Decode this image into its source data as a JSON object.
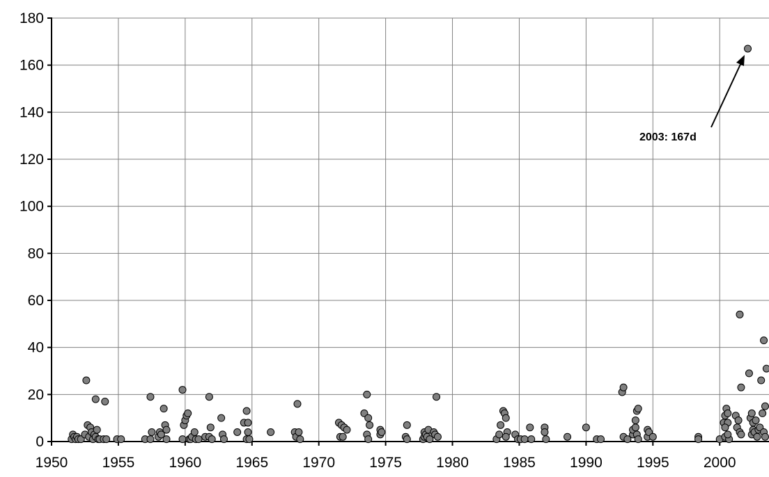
{
  "chart_data": {
    "type": "scatter",
    "title": "",
    "xlabel": "",
    "ylabel": "",
    "xlim": [
      1950,
      2003.5
    ],
    "ylim": [
      0,
      180
    ],
    "x_ticks": [
      1950,
      1955,
      1960,
      1965,
      1970,
      1975,
      1980,
      1985,
      1990,
      1995,
      2000
    ],
    "y_ticks": [
      0,
      20,
      40,
      60,
      80,
      100,
      120,
      140,
      160,
      180
    ],
    "grid": true,
    "legend": "none",
    "marker_color": "#808080",
    "marker_edge_color": "#000000",
    "annotation": {
      "text": "2003: 167d",
      "x": 2002.1,
      "y": 167
    },
    "points": [
      [
        1951.5,
        1
      ],
      [
        1951.6,
        3
      ],
      [
        1951.7,
        2
      ],
      [
        1951.8,
        1
      ],
      [
        1951.9,
        2
      ],
      [
        1952.0,
        1
      ],
      [
        1952.2,
        1
      ],
      [
        1952.5,
        3
      ],
      [
        1952.6,
        26
      ],
      [
        1952.7,
        7
      ],
      [
        1952.8,
        2
      ],
      [
        1952.9,
        6
      ],
      [
        1953.0,
        4
      ],
      [
        1953.1,
        1
      ],
      [
        1953.2,
        3
      ],
      [
        1953.3,
        2
      ],
      [
        1953.4,
        5
      ],
      [
        1953.3,
        18
      ],
      [
        1953.5,
        1
      ],
      [
        1953.6,
        1
      ],
      [
        1953.9,
        1
      ],
      [
        1954.0,
        17
      ],
      [
        1954.1,
        1
      ],
      [
        1954.9,
        1
      ],
      [
        1955.2,
        1
      ],
      [
        1957.0,
        1
      ],
      [
        1957.4,
        1
      ],
      [
        1957.4,
        19
      ],
      [
        1957.5,
        4
      ],
      [
        1958.0,
        2
      ],
      [
        1958.1,
        4
      ],
      [
        1958.2,
        3
      ],
      [
        1958.4,
        14
      ],
      [
        1958.5,
        7
      ],
      [
        1958.6,
        1
      ],
      [
        1958.6,
        5
      ],
      [
        1959.8,
        22
      ],
      [
        1959.8,
        1
      ],
      [
        1959.9,
        7
      ],
      [
        1960.0,
        9
      ],
      [
        1960.1,
        11
      ],
      [
        1960.2,
        12
      ],
      [
        1960.3,
        1
      ],
      [
        1960.4,
        1
      ],
      [
        1960.5,
        2
      ],
      [
        1960.7,
        4
      ],
      [
        1960.8,
        1
      ],
      [
        1961.0,
        1
      ],
      [
        1961.5,
        2
      ],
      [
        1961.8,
        2
      ],
      [
        1961.8,
        19
      ],
      [
        1961.9,
        6
      ],
      [
        1962.0,
        1
      ],
      [
        1962.7,
        10
      ],
      [
        1962.8,
        3
      ],
      [
        1962.9,
        1
      ],
      [
        1963.9,
        4
      ],
      [
        1964.4,
        8
      ],
      [
        1964.6,
        13
      ],
      [
        1964.7,
        8
      ],
      [
        1964.6,
        1
      ],
      [
        1964.7,
        4
      ],
      [
        1964.8,
        1
      ],
      [
        1966.4,
        4
      ],
      [
        1968.2,
        4
      ],
      [
        1968.3,
        2
      ],
      [
        1968.4,
        16
      ],
      [
        1968.5,
        4
      ],
      [
        1968.6,
        1
      ],
      [
        1971.5,
        8
      ],
      [
        1971.6,
        2
      ],
      [
        1971.7,
        7
      ],
      [
        1971.8,
        2
      ],
      [
        1971.9,
        6
      ],
      [
        1972.1,
        5
      ],
      [
        1973.4,
        12
      ],
      [
        1973.6,
        20
      ],
      [
        1973.7,
        10
      ],
      [
        1973.8,
        7
      ],
      [
        1973.6,
        3
      ],
      [
        1973.7,
        1
      ],
      [
        1974.6,
        5
      ],
      [
        1974.6,
        3
      ],
      [
        1974.7,
        4
      ],
      [
        1976.6,
        7
      ],
      [
        1976.5,
        2
      ],
      [
        1976.6,
        1
      ],
      [
        1977.8,
        1
      ],
      [
        1977.9,
        2
      ],
      [
        1977.9,
        4
      ],
      [
        1978.0,
        3
      ],
      [
        1978.1,
        2
      ],
      [
        1978.2,
        5
      ],
      [
        1978.3,
        1
      ],
      [
        1978.6,
        4
      ],
      [
        1978.7,
        3
      ],
      [
        1978.8,
        19
      ],
      [
        1978.9,
        2
      ],
      [
        1983.3,
        1
      ],
      [
        1983.5,
        3
      ],
      [
        1983.6,
        7
      ],
      [
        1983.8,
        13
      ],
      [
        1983.9,
        12
      ],
      [
        1984.0,
        10
      ],
      [
        1984.1,
        4
      ],
      [
        1984.0,
        2
      ],
      [
        1984.7,
        3
      ],
      [
        1984.9,
        1
      ],
      [
        1985.1,
        1
      ],
      [
        1985.4,
        1
      ],
      [
        1985.8,
        6
      ],
      [
        1985.9,
        1
      ],
      [
        1986.9,
        6
      ],
      [
        1986.9,
        4
      ],
      [
        1987.0,
        1
      ],
      [
        1988.6,
        2
      ],
      [
        1990.0,
        6
      ],
      [
        1990.8,
        1
      ],
      [
        1991.1,
        1
      ],
      [
        1992.7,
        21
      ],
      [
        1992.8,
        23
      ],
      [
        1992.8,
        2
      ],
      [
        1993.1,
        1
      ],
      [
        1993.5,
        3
      ],
      [
        1993.5,
        5
      ],
      [
        1993.7,
        9
      ],
      [
        1993.8,
        13
      ],
      [
        1993.9,
        14
      ],
      [
        1993.7,
        6
      ],
      [
        1993.8,
        3
      ],
      [
        1993.9,
        1
      ],
      [
        1994.6,
        5
      ],
      [
        1994.6,
        2
      ],
      [
        1994.7,
        4
      ],
      [
        1995.0,
        2
      ],
      [
        1998.4,
        2
      ],
      [
        1998.4,
        1
      ],
      [
        2000.0,
        1
      ],
      [
        2000.3,
        8
      ],
      [
        2000.4,
        11
      ],
      [
        2000.4,
        2
      ],
      [
        2000.5,
        14
      ],
      [
        2000.6,
        12
      ],
      [
        2000.6,
        8
      ],
      [
        2000.7,
        1
      ],
      [
        2000.4,
        6
      ],
      [
        2000.6,
        3
      ],
      [
        2001.2,
        11
      ],
      [
        2001.3,
        6
      ],
      [
        2001.4,
        9
      ],
      [
        2001.5,
        54
      ],
      [
        2001.6,
        23
      ],
      [
        2001.5,
        4
      ],
      [
        2001.6,
        3
      ],
      [
        2002.1,
        167
      ],
      [
        2002.2,
        29
      ],
      [
        2002.3,
        10
      ],
      [
        2002.4,
        12
      ],
      [
        2002.5,
        8
      ],
      [
        2002.4,
        3
      ],
      [
        2002.5,
        5
      ],
      [
        2002.6,
        4
      ],
      [
        2002.7,
        9
      ],
      [
        2002.8,
        2
      ],
      [
        2002.9,
        5
      ],
      [
        2003.0,
        6
      ],
      [
        2003.1,
        26
      ],
      [
        2003.2,
        12
      ],
      [
        2003.3,
        43
      ],
      [
        2003.4,
        15
      ],
      [
        2003.3,
        4
      ],
      [
        2003.4,
        2
      ],
      [
        2003.5,
        31
      ]
    ]
  }
}
